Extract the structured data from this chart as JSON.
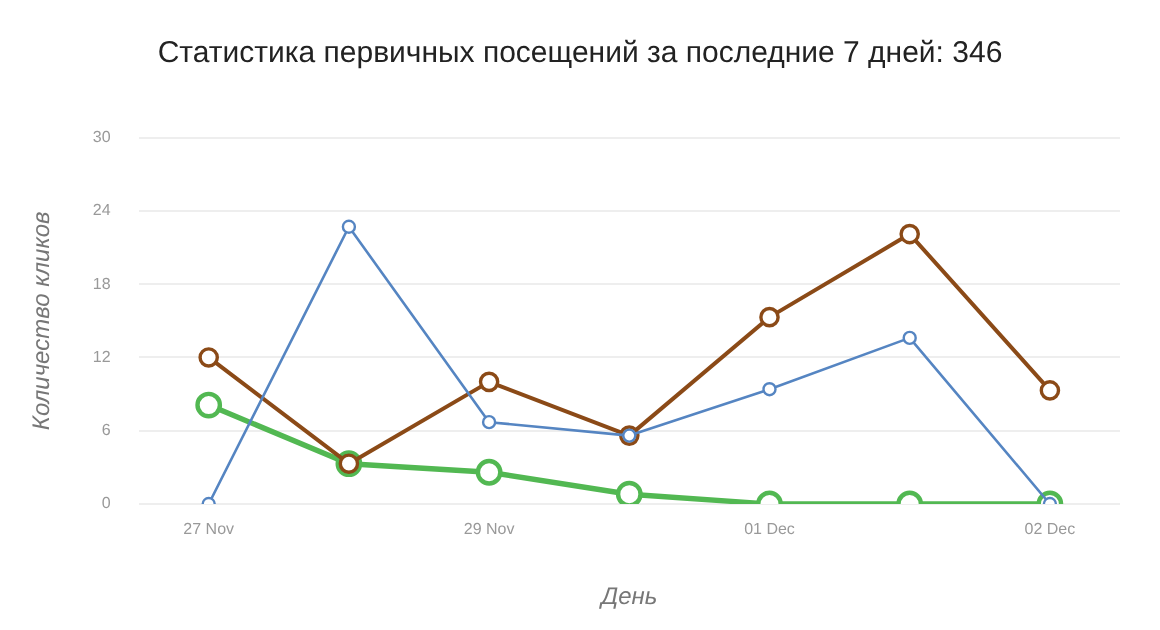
{
  "chart_data": {
    "type": "line",
    "title": "Статистика первичных посещений за последние 7 дней: 346",
    "xlabel": "День",
    "ylabel": "Количество кликов",
    "categories": [
      "27 Nov",
      null,
      "29 Nov",
      null,
      "01 Dec",
      null,
      "02 Dec"
    ],
    "series": [
      {
        "color": "#5585c2",
        "values": [
          0,
          22.7,
          6.7,
          5.6,
          9.4,
          13.6,
          0
        ]
      },
      {
        "color": "#8b4a17",
        "values": [
          12,
          3.3,
          10,
          5.6,
          15.3,
          22.1,
          9.3
        ]
      },
      {
        "color": "#52b852",
        "values": [
          8.1,
          3.3,
          2.6,
          0.8,
          0,
          0,
          0
        ]
      }
    ],
    "ylim": [
      0,
      30
    ],
    "yticks": [
      0,
      6,
      12,
      18,
      24,
      30
    ],
    "grid": "y",
    "marker": "circle",
    "line_style": "solid",
    "legend": false
  }
}
